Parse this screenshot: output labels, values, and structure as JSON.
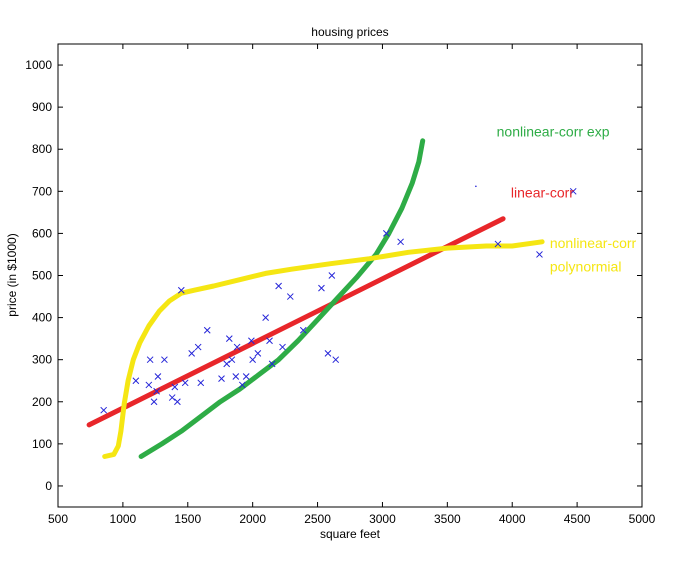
{
  "chart_data": {
    "type": "scatter",
    "title": "housing prices",
    "xlabel": "square feet",
    "ylabel": "price (in $1000)",
    "xlim": [
      500,
      5000
    ],
    "ylim": [
      -50,
      1050
    ],
    "xticks": [
      500,
      1000,
      1500,
      2000,
      2500,
      3000,
      3500,
      4000,
      4500,
      5000
    ],
    "yticks": [
      0,
      100,
      200,
      300,
      400,
      500,
      600,
      700,
      800,
      900,
      1000
    ],
    "grid": false,
    "points": [
      {
        "x": 852,
        "y": 180
      },
      {
        "x": 1100,
        "y": 250
      },
      {
        "x": 1200,
        "y": 240
      },
      {
        "x": 1210,
        "y": 300
      },
      {
        "x": 1240,
        "y": 200
      },
      {
        "x": 1260,
        "y": 225
      },
      {
        "x": 1270,
        "y": 260
      },
      {
        "x": 1320,
        "y": 300
      },
      {
        "x": 1380,
        "y": 210
      },
      {
        "x": 1400,
        "y": 235
      },
      {
        "x": 1420,
        "y": 200
      },
      {
        "x": 1450,
        "y": 465
      },
      {
        "x": 1480,
        "y": 245
      },
      {
        "x": 1530,
        "y": 315
      },
      {
        "x": 1580,
        "y": 330
      },
      {
        "x": 1600,
        "y": 245
      },
      {
        "x": 1650,
        "y": 370
      },
      {
        "x": 1760,
        "y": 255
      },
      {
        "x": 1800,
        "y": 290
      },
      {
        "x": 1820,
        "y": 350
      },
      {
        "x": 1840,
        "y": 300
      },
      {
        "x": 1870,
        "y": 260
      },
      {
        "x": 1880,
        "y": 330
      },
      {
        "x": 1920,
        "y": 240
      },
      {
        "x": 1950,
        "y": 260
      },
      {
        "x": 1990,
        "y": 345
      },
      {
        "x": 2000,
        "y": 300
      },
      {
        "x": 2040,
        "y": 315
      },
      {
        "x": 2100,
        "y": 400
      },
      {
        "x": 2130,
        "y": 345
      },
      {
        "x": 2150,
        "y": 290
      },
      {
        "x": 2200,
        "y": 475
      },
      {
        "x": 2230,
        "y": 330
      },
      {
        "x": 2290,
        "y": 450
      },
      {
        "x": 2390,
        "y": 370
      },
      {
        "x": 2530,
        "y": 470
      },
      {
        "x": 2580,
        "y": 315
      },
      {
        "x": 2610,
        "y": 500
      },
      {
        "x": 2640,
        "y": 300
      },
      {
        "x": 3030,
        "y": 600
      },
      {
        "x": 3140,
        "y": 580
      },
      {
        "x": 3890,
        "y": 575
      },
      {
        "x": 4210,
        "y": 550
      },
      {
        "x": 4470,
        "y": 700
      }
    ],
    "series": [
      {
        "name": "linear-corr",
        "color": "#e8262a",
        "x": [
          740,
          3930
        ],
        "y": [
          145,
          635
        ]
      },
      {
        "name": "nonlinear-corr exp",
        "color": "#2eac46",
        "x": [
          1140,
          1300,
          1450,
          1600,
          1750,
          1900,
          2050,
          2200,
          2350,
          2500,
          2650,
          2800,
          2950,
          3050,
          3150,
          3230,
          3280,
          3310
        ],
        "y": [
          70,
          100,
          130,
          165,
          200,
          230,
          265,
          300,
          345,
          395,
          445,
          495,
          550,
          600,
          660,
          720,
          770,
          820
        ]
      },
      {
        "name": "nonlinear-corr polynormial",
        "color": "#f5e613",
        "x": [
          860,
          930,
          965,
          985,
          1010,
          1040,
          1080,
          1130,
          1200,
          1280,
          1360,
          1450,
          1550,
          1700,
          1900,
          2100,
          2300,
          2600,
          2900,
          3200,
          3500,
          3800,
          4000,
          4230
        ],
        "y": [
          70,
          75,
          95,
          130,
          195,
          250,
          300,
          340,
          380,
          415,
          440,
          458,
          465,
          475,
          490,
          505,
          515,
          528,
          540,
          555,
          565,
          570,
          570,
          580
        ]
      }
    ],
    "annotations": [
      {
        "text": "nonlinear-corr exp",
        "color": "#2eac46",
        "x": 3880,
        "y": 830
      },
      {
        "text": "linear-corr",
        "color": "#e8262a",
        "x": 3990,
        "y": 685
      },
      {
        "text": "nonlinear-corr",
        "color": "#f5e613",
        "x": 4290,
        "y": 565
      },
      {
        "text": "polynormial",
        "color": "#f5e613",
        "x": 4290,
        "y": 510
      }
    ],
    "point_color": "#2525d8",
    "stray_dot": {
      "x": 3720,
      "y": 712
    }
  }
}
